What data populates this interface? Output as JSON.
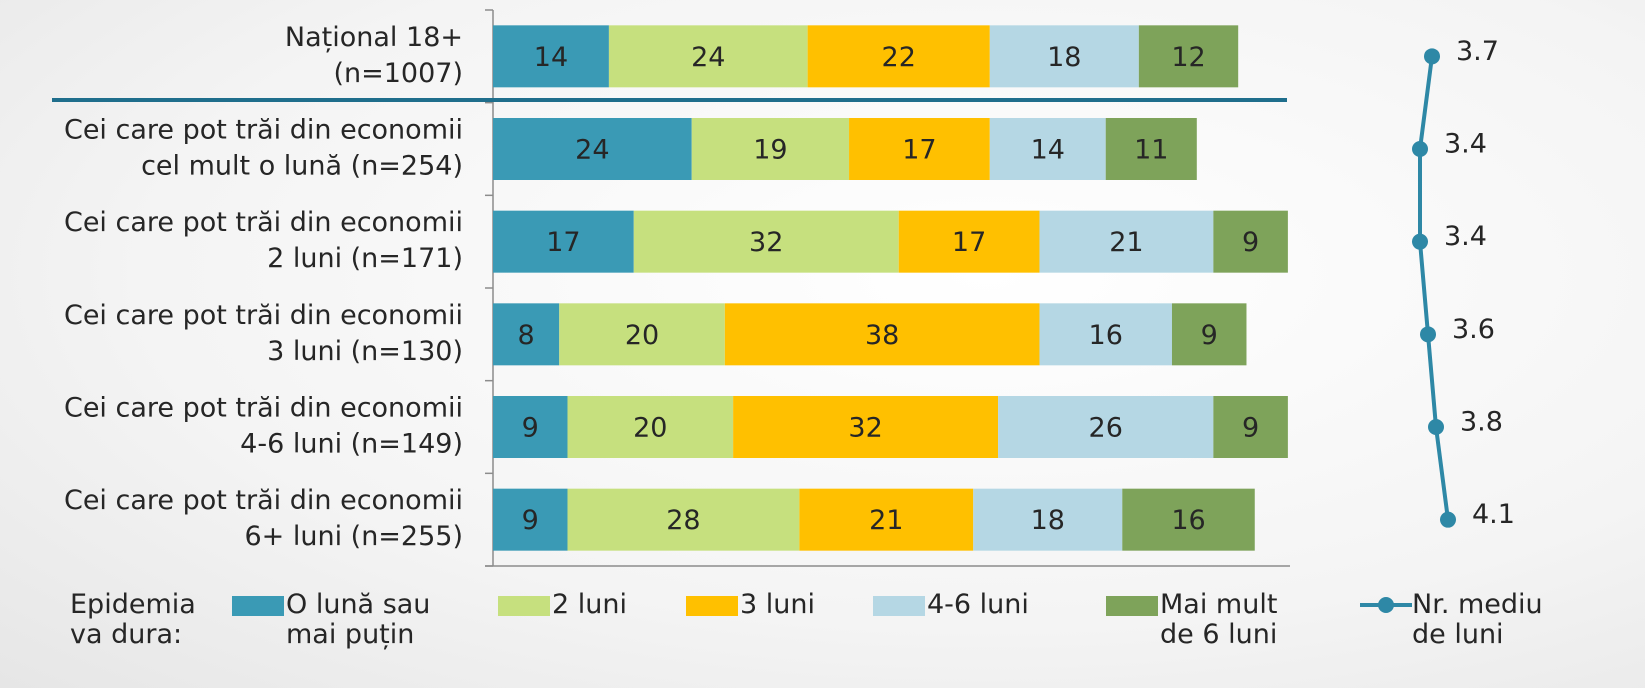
{
  "chart_data": {
    "type": "stacked_barh",
    "categories": [
      [
        "Național 18+",
        "(n=1007)"
      ],
      [
        "Cei care pot trăi din economii",
        "cel mult o lună (n=254)"
      ],
      [
        "Cei care pot trăi din economii",
        "2 luni (n=171)"
      ],
      [
        "Cei care pot trăi din economii",
        "3 luni (n=130)"
      ],
      [
        "Cei care pot trăi din economii",
        "4-6 luni (n=149)"
      ],
      [
        "Cei care pot trăi din economii",
        "6+ luni (n=255)"
      ]
    ],
    "legend_title": "Epidemia va dura:",
    "series": [
      {
        "name": "O lună sau mai puțin",
        "color": "#3a9ab5",
        "values": [
          14,
          24,
          17,
          8,
          9,
          9
        ]
      },
      {
        "name": "2 luni",
        "color": "#c6e07e",
        "values": [
          24,
          19,
          32,
          20,
          20,
          28
        ]
      },
      {
        "name": "3 luni",
        "color": "#ffc000",
        "values": [
          22,
          17,
          17,
          38,
          32,
          21
        ]
      },
      {
        "name": "4-6 luni",
        "color": "#b5d7e4",
        "values": [
          18,
          14,
          21,
          16,
          26,
          18
        ]
      },
      {
        "name": "Mai mult de 6 luni",
        "color": "#7ea35a",
        "values": [
          12,
          11,
          9,
          9,
          9,
          16
        ]
      },
      {
        "name": "Nr. mediu de luni",
        "color": "#2e88a6",
        "type": "line",
        "axis": "x2",
        "values": [
          3.7,
          3.4,
          3.4,
          3.6,
          3.8,
          4.1
        ]
      }
    ],
    "xlim": [
      0,
      100
    ],
    "x2lim": [
      0,
      5
    ],
    "legend": "bottom"
  }
}
